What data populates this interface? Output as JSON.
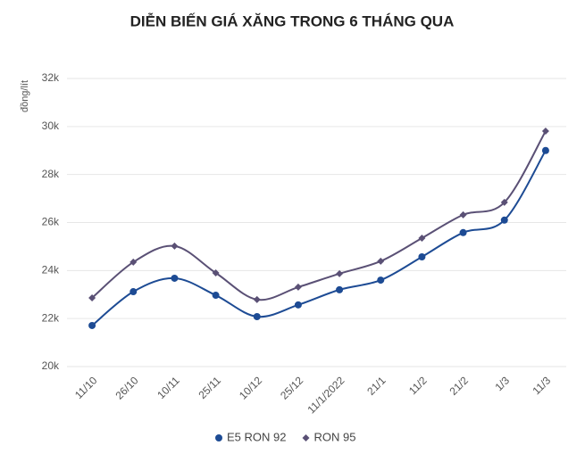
{
  "chart_data": {
    "type": "line",
    "title": "DIỄN BIẾN GIÁ XĂNG TRONG 6 THÁNG QUA",
    "y_label": "đồng/lít",
    "categories": [
      "11/10",
      "26/10",
      "10/11",
      "25/11",
      "10/12",
      "25/12",
      "11/1/2022",
      "21/1",
      "11/2",
      "21/2",
      "1/3",
      "11/3"
    ],
    "series": [
      {
        "name": "E5 RON 92",
        "color": "#1d4b94",
        "marker": "circle",
        "values": [
          21710,
          23120,
          23680,
          22970,
          22080,
          22570,
          23200,
          23600,
          24570,
          25580,
          26100,
          29000
        ]
      },
      {
        "name": "RON 95",
        "color": "#5a5075",
        "marker": "diamond",
        "values": [
          22860,
          24350,
          25020,
          23900,
          22790,
          23310,
          23870,
          24390,
          25350,
          26320,
          26840,
          29810
        ]
      }
    ],
    "ylim": [
      20000,
      32000
    ],
    "yticks": [
      {
        "value": 20000,
        "label": "20k"
      },
      {
        "value": 22000,
        "label": "22k"
      },
      {
        "value": 24000,
        "label": "24k"
      },
      {
        "value": 26000,
        "label": "26k"
      },
      {
        "value": 28000,
        "label": "28k"
      },
      {
        "value": 30000,
        "label": "30k"
      },
      {
        "value": 32000,
        "label": "32k"
      }
    ],
    "grid": true,
    "legend": "bottom"
  }
}
